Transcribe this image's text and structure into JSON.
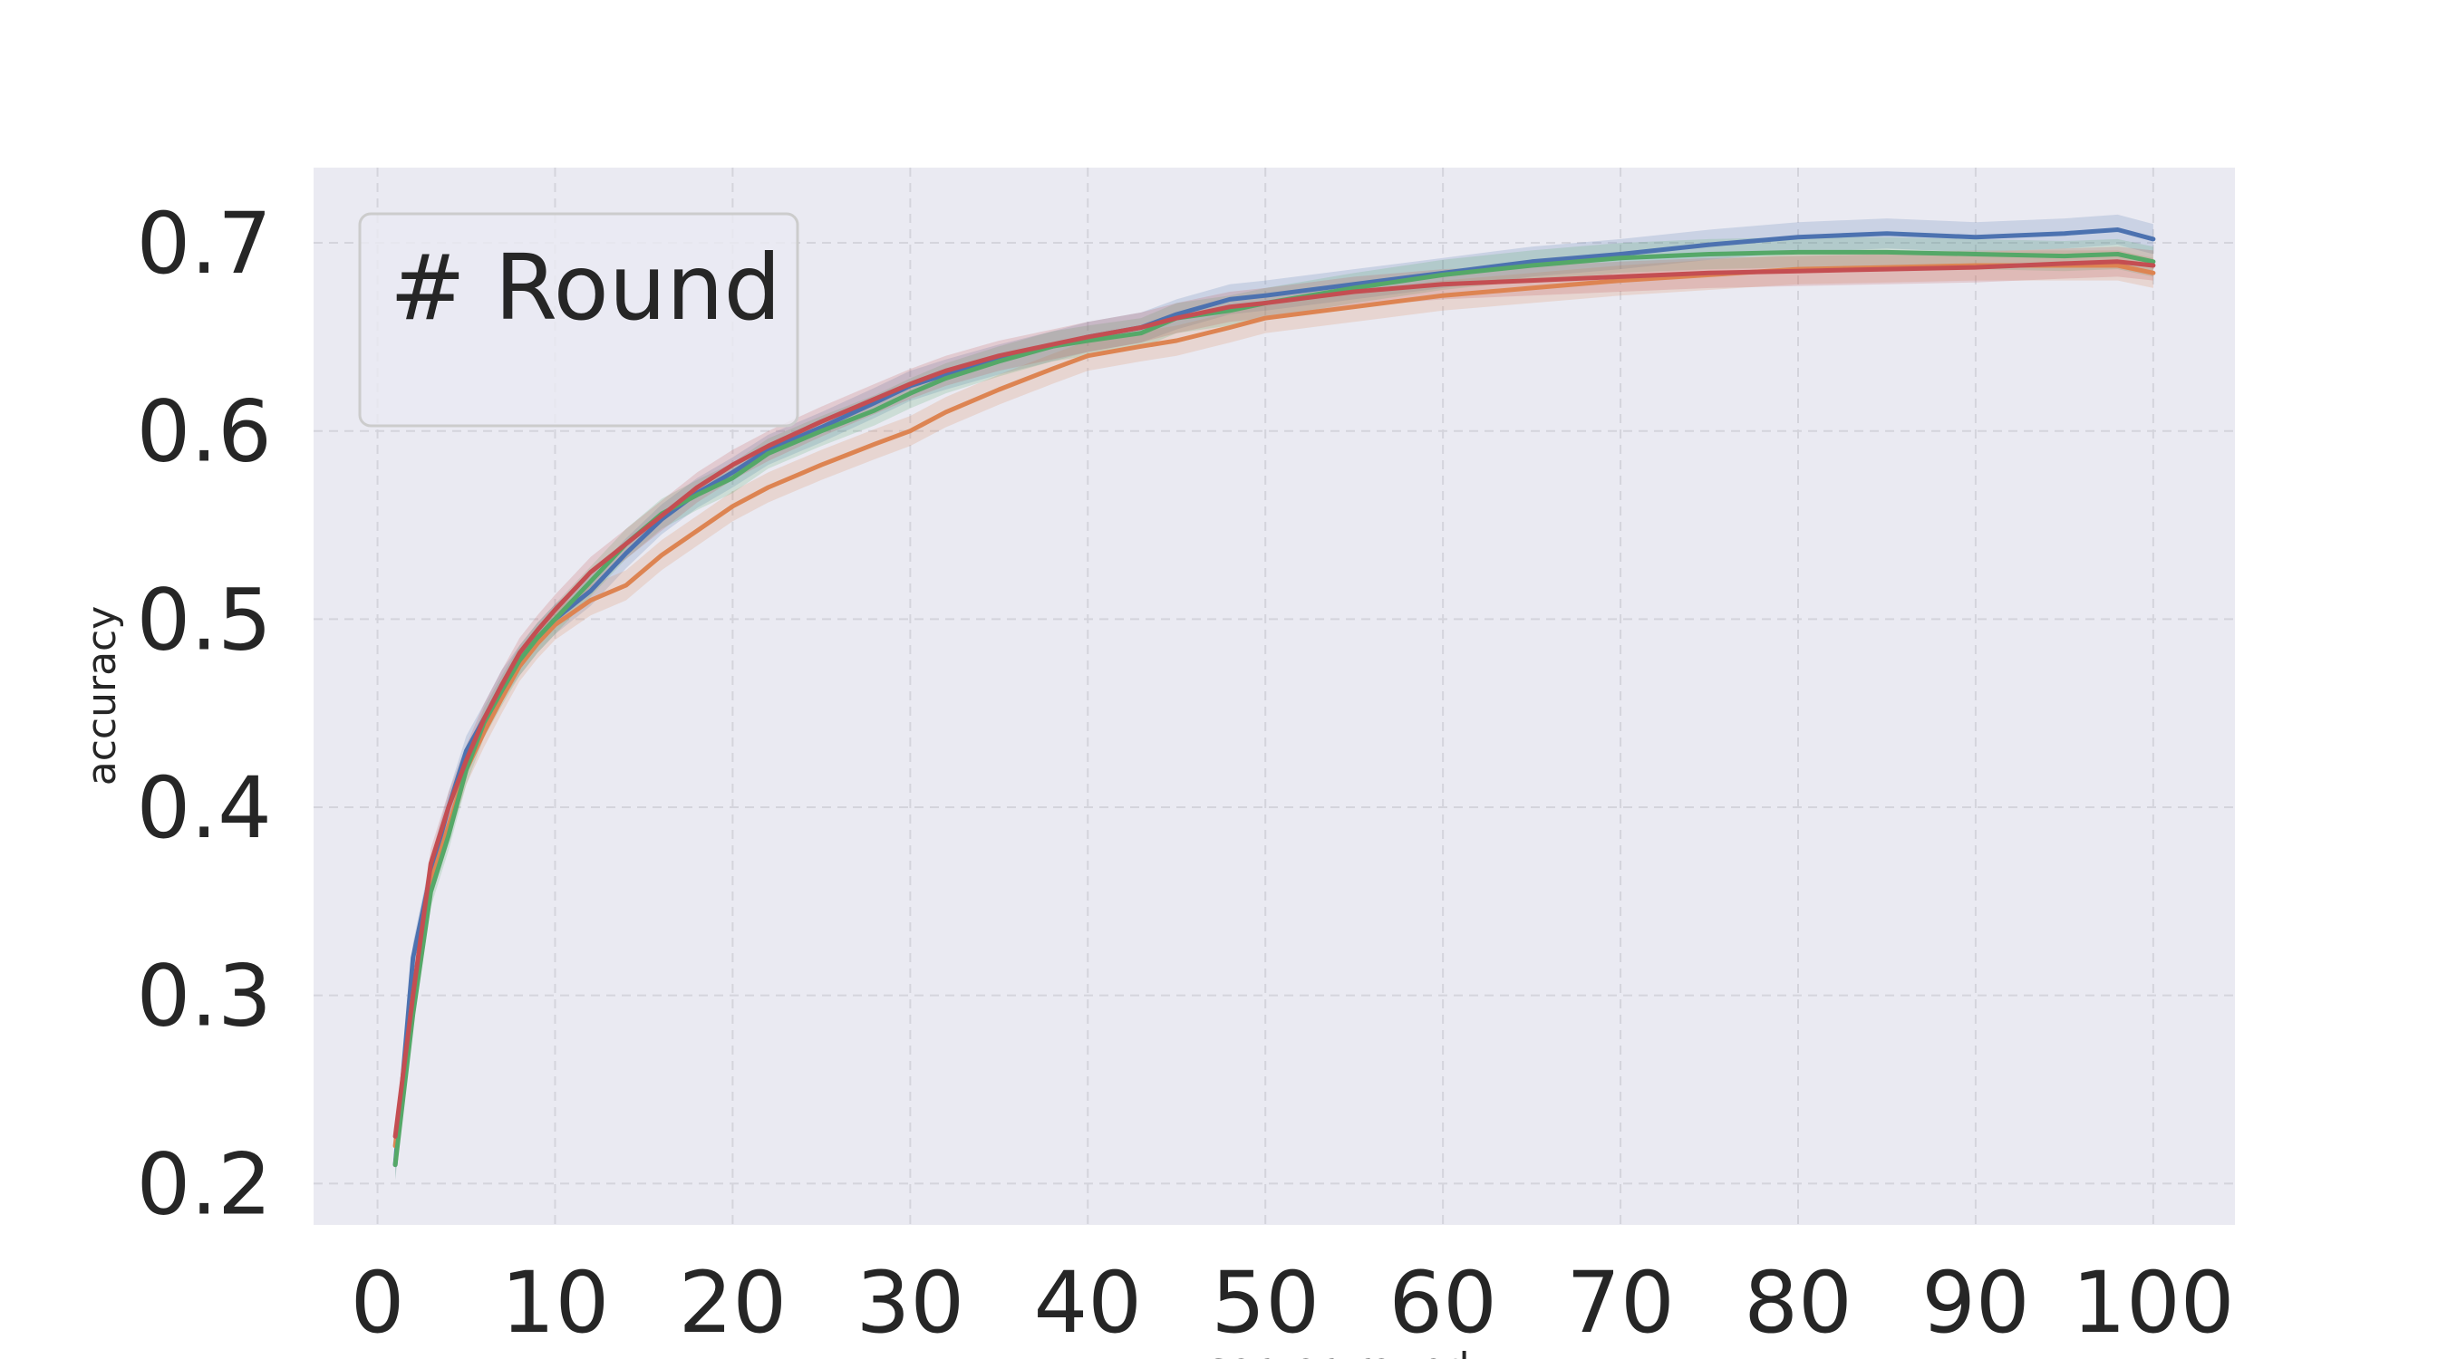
{
  "chart_data": {
    "type": "line",
    "title": "",
    "xlabel": "server_round",
    "ylabel": "accuracy",
    "xlim": [
      -3.6,
      104.6
    ],
    "ylim": [
      0.178,
      0.74
    ],
    "xticks": [
      0,
      10,
      20,
      30,
      40,
      50,
      60,
      70,
      80,
      90,
      100
    ],
    "yticks": [
      0.2,
      0.3,
      0.4,
      0.5,
      0.6,
      0.7
    ],
    "grid": true,
    "legend": {
      "title": "# Round",
      "placement": "top-left",
      "entries": []
    },
    "confidence_band": true,
    "series": [
      {
        "color": "#4c72b0",
        "x": [
          1,
          2,
          3,
          4,
          5,
          6,
          7,
          8,
          9,
          10,
          12,
          14,
          16,
          18,
          20,
          22,
          25,
          28,
          30,
          32,
          35,
          38,
          40,
          43,
          45,
          48,
          50,
          55,
          60,
          65,
          70,
          75,
          80,
          85,
          90,
          95,
          98,
          100
        ],
        "values": [
          0.21,
          0.32,
          0.365,
          0.4,
          0.43,
          0.447,
          0.465,
          0.478,
          0.49,
          0.5,
          0.515,
          0.535,
          0.553,
          0.567,
          0.578,
          0.59,
          0.602,
          0.615,
          0.624,
          0.63,
          0.638,
          0.645,
          0.65,
          0.655,
          0.662,
          0.67,
          0.672,
          0.678,
          0.684,
          0.69,
          0.694,
          0.699,
          0.703,
          0.705,
          0.703,
          0.705,
          0.707,
          0.702
        ]
      },
      {
        "color": "#dd8452",
        "x": [
          1,
          2,
          3,
          4,
          5,
          6,
          7,
          8,
          9,
          10,
          12,
          14,
          16,
          18,
          20,
          22,
          25,
          28,
          30,
          32,
          35,
          38,
          40,
          43,
          45,
          48,
          50,
          55,
          60,
          65,
          70,
          75,
          80,
          85,
          90,
          95,
          98,
          100
        ],
        "values": [
          0.22,
          0.3,
          0.36,
          0.39,
          0.42,
          0.44,
          0.458,
          0.475,
          0.487,
          0.497,
          0.51,
          0.518,
          0.534,
          0.547,
          0.56,
          0.57,
          0.582,
          0.593,
          0.6,
          0.61,
          0.622,
          0.633,
          0.64,
          0.645,
          0.648,
          0.655,
          0.66,
          0.666,
          0.672,
          0.676,
          0.68,
          0.683,
          0.686,
          0.687,
          0.688,
          0.688,
          0.688,
          0.684
        ]
      },
      {
        "color": "#55a868",
        "x": [
          1,
          2,
          3,
          4,
          5,
          6,
          7,
          8,
          9,
          10,
          12,
          14,
          16,
          18,
          20,
          22,
          25,
          28,
          30,
          32,
          35,
          38,
          40,
          43,
          45,
          48,
          50,
          55,
          60,
          65,
          70,
          75,
          80,
          85,
          90,
          95,
          98,
          100
        ],
        "values": [
          0.21,
          0.29,
          0.355,
          0.385,
          0.42,
          0.445,
          0.462,
          0.478,
          0.49,
          0.5,
          0.52,
          0.54,
          0.556,
          0.566,
          0.575,
          0.588,
          0.6,
          0.611,
          0.62,
          0.628,
          0.637,
          0.645,
          0.648,
          0.652,
          0.66,
          0.664,
          0.668,
          0.676,
          0.683,
          0.688,
          0.692,
          0.694,
          0.695,
          0.695,
          0.694,
          0.693,
          0.694,
          0.69
        ]
      },
      {
        "color": "#c44e52",
        "x": [
          1,
          2,
          3,
          4,
          5,
          6,
          7,
          8,
          9,
          10,
          12,
          14,
          16,
          18,
          20,
          22,
          25,
          28,
          30,
          32,
          35,
          38,
          40,
          43,
          45,
          48,
          50,
          55,
          60,
          65,
          70,
          75,
          80,
          85,
          90,
          95,
          98,
          100
        ],
        "values": [
          0.225,
          0.3,
          0.37,
          0.4,
          0.425,
          0.447,
          0.465,
          0.482,
          0.494,
          0.505,
          0.525,
          0.54,
          0.555,
          0.57,
          0.582,
          0.592,
          0.605,
          0.617,
          0.625,
          0.632,
          0.64,
          0.646,
          0.65,
          0.655,
          0.66,
          0.666,
          0.668,
          0.674,
          0.678,
          0.68,
          0.682,
          0.684,
          0.685,
          0.686,
          0.687,
          0.689,
          0.69,
          0.688
        ]
      }
    ]
  }
}
